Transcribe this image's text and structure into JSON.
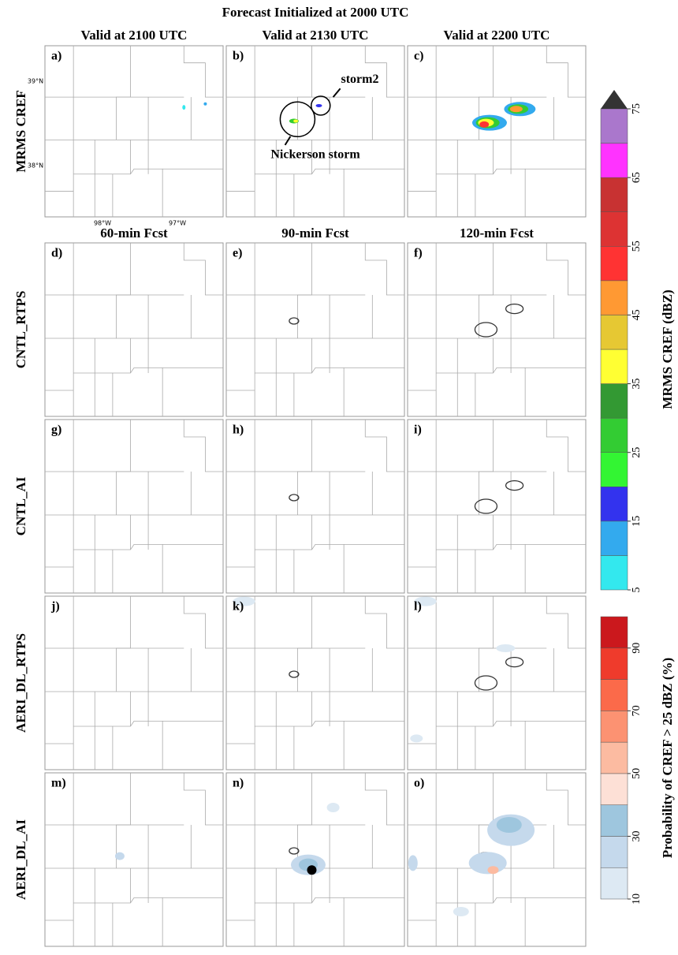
{
  "title": "Forecast Initialized at 2000 UTC",
  "column_headers": [
    "Valid at 2100 UTC",
    "Valid at 2130 UTC",
    "Valid at 2200 UTC"
  ],
  "forecast_headers": [
    "60-min Fcst",
    "90-min Fcst",
    "120-min Fcst"
  ],
  "row_labels": [
    "MRMS CREF",
    "CNTL_RTPS",
    "CNTL_AI",
    "AERI_DL_RTPS",
    "AERI_DL_AI"
  ],
  "panel_labels": [
    "a)",
    "b)",
    "c)",
    "d)",
    "e)",
    "f)",
    "g)",
    "h)",
    "i)",
    "j)",
    "k)",
    "l)",
    "m)",
    "n)",
    "o)"
  ],
  "annotations": [
    "storm2",
    "Nickerson storm"
  ],
  "lat_labels": [
    "39°N",
    "38°N"
  ],
  "lon_labels": [
    "98°W",
    "97°W"
  ],
  "reflectivity_colorbar": {
    "title": "MRMS CREF (dBZ)",
    "ticks": [
      5,
      15,
      25,
      35,
      45,
      55,
      65,
      75
    ],
    "colors": [
      "#33e8ee",
      "#33aaee",
      "#3333ee",
      "#33f533",
      "#33cc33",
      "#339933",
      "#ffff33",
      "#e6c833",
      "#ff9933",
      "#ff3333",
      "#dd3333",
      "#c83232",
      "#ff33ff",
      "#aa77cc"
    ]
  },
  "probability_colorbar": {
    "title": "Probability of CREF > 25 dBZ (%)",
    "ticks": [
      10,
      30,
      50,
      70,
      90
    ],
    "colors": [
      "#dde9f3",
      "#c5d9ec",
      "#9ec6de",
      "#fde0d6",
      "#fcbba1",
      "#fc9272",
      "#fb6a4a",
      "#ef3b2c",
      "#cb181d"
    ]
  }
}
